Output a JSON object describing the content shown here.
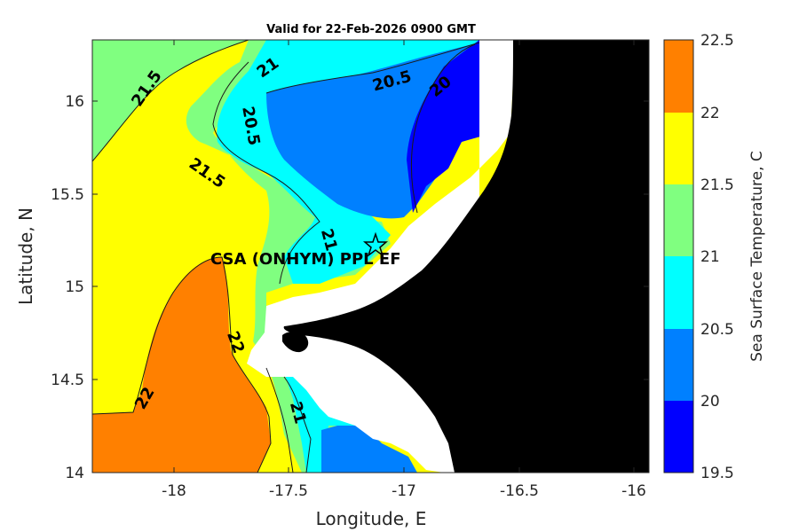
{
  "title": "Valid for 22-Feb-2026 0900 GMT",
  "x_axis": {
    "label": "Longitude, E",
    "ticks": [
      "-18",
      "-17.5",
      "-17",
      "-16.5",
      "-16"
    ]
  },
  "y_axis": {
    "label": "Latitude, N",
    "ticks": [
      "16",
      "15.5",
      "15",
      "14.5",
      "14"
    ]
  },
  "colorbar": {
    "label": "Sea Surface Temperature, C",
    "ticks": [
      "22.5",
      "22",
      "21.5",
      "21",
      "20.5",
      "20",
      "19.5"
    ],
    "bands": [
      {
        "from": 22,
        "to": 22.5,
        "color": "#ff8000"
      },
      {
        "from": 21.5,
        "to": 22,
        "color": "#ffff00"
      },
      {
        "from": 21,
        "to": 21.5,
        "color": "#80ff80"
      },
      {
        "from": 20.5,
        "to": 21,
        "color": "#00ffff"
      },
      {
        "from": 20,
        "to": 20.5,
        "color": "#0080ff"
      },
      {
        "from": 19.5,
        "to": 20,
        "color": "#0000ff"
      }
    ]
  },
  "contour_labels": [
    "21.5",
    "21",
    "20.5",
    "20",
    "20.5",
    "21.5",
    "21",
    "22",
    "22",
    "21"
  ],
  "site": {
    "label": "CSA (ONHYM) PPL EF",
    "marker": "star-icon"
  },
  "land_color": "#000000",
  "mask_color": "#ffffff"
}
